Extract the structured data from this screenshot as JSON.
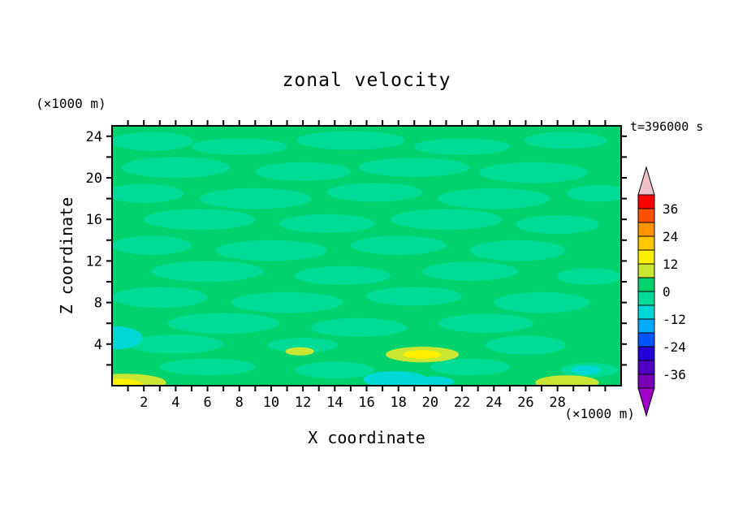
{
  "title": "zonal velocity",
  "timestamp": "t=396000 s",
  "axes": {
    "x_label": "X coordinate",
    "x_unit": "(×1000 m)",
    "y_label": "Z coordinate",
    "y_unit": "(×1000 m)",
    "x_ticks": [
      2,
      4,
      6,
      8,
      10,
      12,
      14,
      16,
      18,
      20,
      22,
      24,
      26,
      28
    ],
    "y_ticks": [
      4,
      8,
      12,
      16,
      20,
      24
    ]
  },
  "chart_data": {
    "type": "heatmap",
    "subtype": "filled-contour",
    "title": "zonal velocity",
    "xlabel": "X coordinate (×1000 m)",
    "ylabel": "Z coordinate (×1000 m)",
    "time_annotation": "t=396000 s",
    "x_range": [
      0,
      32
    ],
    "y_range": [
      0,
      25
    ],
    "x_tick_step": 1,
    "y_tick_step": 2,
    "contour_interval": 6,
    "palette": [
      {
        "min": -42,
        "max": -36,
        "color": "#7800b4"
      },
      {
        "min": -36,
        "max": -30,
        "color": "#5000c0"
      },
      {
        "min": -30,
        "max": -24,
        "color": "#2400d8"
      },
      {
        "min": -24,
        "max": -18,
        "color": "#0055ff"
      },
      {
        "min": -18,
        "max": -12,
        "color": "#00aaff"
      },
      {
        "min": -12,
        "max": -6,
        "color": "#00d8d8"
      },
      {
        "min": -6,
        "max": 0,
        "color": "#00dc96"
      },
      {
        "min": 0,
        "max": 6,
        "color": "#00d26e"
      },
      {
        "min": 6,
        "max": 12,
        "color": "#c8e632"
      },
      {
        "min": 12,
        "max": 18,
        "color": "#fff000"
      },
      {
        "min": 18,
        "max": 24,
        "color": "#ffc800"
      },
      {
        "min": 24,
        "max": 30,
        "color": "#ff9600"
      },
      {
        "min": 30,
        "max": 36,
        "color": "#ff5000"
      },
      {
        "min": 36,
        "max": 42,
        "color": "#ff0000"
      }
    ],
    "colorbar": {
      "labels": [
        36,
        24,
        12,
        0,
        -12,
        -24,
        -36
      ],
      "over_color": "#eec0ca",
      "under_color": "#a000c8"
    },
    "field": {
      "description": "Velocity field dominated by the 0..6 band (green) with elongated -6..0 streaks (spring green); weak -12..-6 cyan patches near x=0 z=4.5 and near the bottom around x=18; positive 6..18 (yellow) patches at the bottom-left corner, around x=19.5 z=3, and the bottom-right corner.",
      "base_band": 7,
      "patches": [
        {
          "x": 2.5,
          "z": 23.5,
          "rx": 2.6,
          "rz": 0.9,
          "band": 6
        },
        {
          "x": 8,
          "z": 23,
          "rx": 3,
          "rz": 0.8,
          "band": 6
        },
        {
          "x": 15,
          "z": 23.6,
          "rx": 3.4,
          "rz": 0.9,
          "band": 6
        },
        {
          "x": 22,
          "z": 23,
          "rx": 3,
          "rz": 0.8,
          "band": 6
        },
        {
          "x": 28.5,
          "z": 23.6,
          "rx": 2.6,
          "rz": 0.8,
          "band": 6
        },
        {
          "x": 4,
          "z": 21,
          "rx": 3.4,
          "rz": 1.0,
          "band": 6
        },
        {
          "x": 12,
          "z": 20.6,
          "rx": 3,
          "rz": 0.9,
          "band": 6
        },
        {
          "x": 19,
          "z": 21,
          "rx": 3.5,
          "rz": 0.9,
          "band": 6
        },
        {
          "x": 26.5,
          "z": 20.5,
          "rx": 3.4,
          "rz": 1.0,
          "band": 6
        },
        {
          "x": 2,
          "z": 18.5,
          "rx": 2.5,
          "rz": 0.9,
          "band": 6
        },
        {
          "x": 9,
          "z": 18,
          "rx": 3.5,
          "rz": 1.0,
          "band": 6
        },
        {
          "x": 16.5,
          "z": 18.6,
          "rx": 3,
          "rz": 0.9,
          "band": 6
        },
        {
          "x": 24,
          "z": 18,
          "rx": 3.5,
          "rz": 1.0,
          "band": 6
        },
        {
          "x": 30.6,
          "z": 18.5,
          "rx": 2,
          "rz": 0.8,
          "band": 6
        },
        {
          "x": 5.5,
          "z": 16,
          "rx": 3.5,
          "rz": 1.0,
          "band": 6
        },
        {
          "x": 13.5,
          "z": 15.6,
          "rx": 3,
          "rz": 0.9,
          "band": 6
        },
        {
          "x": 21,
          "z": 16,
          "rx": 3.5,
          "rz": 1.0,
          "band": 6
        },
        {
          "x": 28,
          "z": 15.5,
          "rx": 2.6,
          "rz": 0.9,
          "band": 6
        },
        {
          "x": 2.5,
          "z": 13.5,
          "rx": 2.5,
          "rz": 0.9,
          "band": 6
        },
        {
          "x": 10,
          "z": 13,
          "rx": 3.5,
          "rz": 1.0,
          "band": 6
        },
        {
          "x": 18,
          "z": 13.5,
          "rx": 3,
          "rz": 0.9,
          "band": 6
        },
        {
          "x": 25.5,
          "z": 13,
          "rx": 3,
          "rz": 1.0,
          "band": 6
        },
        {
          "x": 6,
          "z": 11,
          "rx": 3.5,
          "rz": 1.0,
          "band": 6
        },
        {
          "x": 14.5,
          "z": 10.6,
          "rx": 3,
          "rz": 0.9,
          "band": 6
        },
        {
          "x": 22.5,
          "z": 11,
          "rx": 3,
          "rz": 0.9,
          "band": 6
        },
        {
          "x": 30,
          "z": 10.5,
          "rx": 2,
          "rz": 0.8,
          "band": 6
        },
        {
          "x": 3,
          "z": 8.5,
          "rx": 3,
          "rz": 1.0,
          "band": 6
        },
        {
          "x": 11,
          "z": 8,
          "rx": 3.5,
          "rz": 1.0,
          "band": 6
        },
        {
          "x": 19,
          "z": 8.6,
          "rx": 3,
          "rz": 0.9,
          "band": 6
        },
        {
          "x": 27,
          "z": 8,
          "rx": 3,
          "rz": 1.0,
          "band": 6
        },
        {
          "x": 7,
          "z": 6,
          "rx": 3.5,
          "rz": 1.0,
          "band": 6
        },
        {
          "x": 15.5,
          "z": 5.6,
          "rx": 3,
          "rz": 0.9,
          "band": 6
        },
        {
          "x": 23.5,
          "z": 6,
          "rx": 3,
          "rz": 0.9,
          "band": 6
        },
        {
          "x": 4,
          "z": 4,
          "rx": 3,
          "rz": 0.9,
          "band": 6
        },
        {
          "x": 12,
          "z": 3.9,
          "rx": 2.2,
          "rz": 0.7,
          "band": 6
        },
        {
          "x": 26,
          "z": 3.9,
          "rx": 2.5,
          "rz": 0.9,
          "band": 6
        },
        {
          "x": 6,
          "z": 1.8,
          "rx": 3,
          "rz": 0.8,
          "band": 6
        },
        {
          "x": 14,
          "z": 1.5,
          "rx": 2.5,
          "rz": 0.8,
          "band": 6
        },
        {
          "x": 22.5,
          "z": 1.8,
          "rx": 2.5,
          "rz": 0.8,
          "band": 6
        },
        {
          "x": 30,
          "z": 1.5,
          "rx": 1.8,
          "rz": 0.7,
          "band": 6
        },
        {
          "x": 0.3,
          "z": 4.6,
          "rx": 1.6,
          "rz": 1.1,
          "band": 5
        },
        {
          "x": 17.8,
          "z": 0.6,
          "rx": 2.0,
          "rz": 0.8,
          "band": 5
        },
        {
          "x": 20.2,
          "z": 0.4,
          "rx": 1.3,
          "rz": 0.5,
          "band": 5
        },
        {
          "x": 29.8,
          "z": 1.5,
          "rx": 0.9,
          "rz": 0.45,
          "band": 5
        },
        {
          "x": 0.8,
          "z": 0.3,
          "rx": 2.6,
          "rz": 0.85,
          "band": 8
        },
        {
          "x": 19.5,
          "z": 3.0,
          "rx": 2.3,
          "rz": 0.75,
          "band": 8
        },
        {
          "x": 11.8,
          "z": 3.3,
          "rx": 0.9,
          "rz": 0.4,
          "band": 8
        },
        {
          "x": 28.6,
          "z": 0.3,
          "rx": 2.0,
          "rz": 0.7,
          "band": 8
        },
        {
          "x": 0.4,
          "z": 0.15,
          "rx": 1.5,
          "rz": 0.5,
          "band": 9
        },
        {
          "x": 19.5,
          "z": 3.0,
          "rx": 1.2,
          "rz": 0.42,
          "band": 9
        }
      ]
    }
  }
}
